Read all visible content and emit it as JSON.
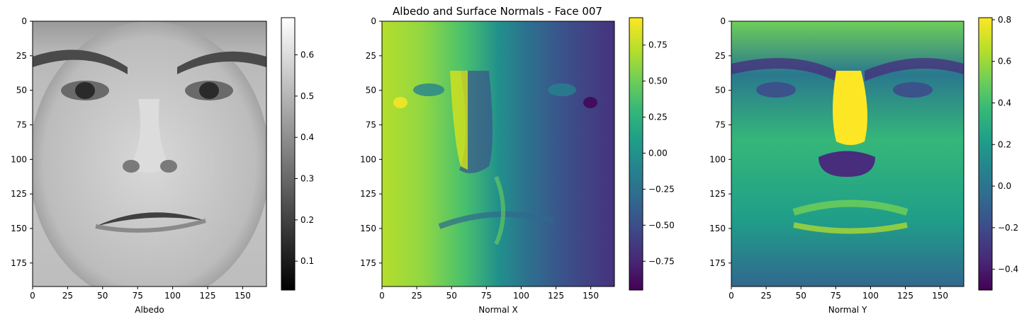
{
  "title": "Albedo and Surface Normals - Face 007",
  "colors": {
    "skin_light": "#c9c9c9",
    "viridis": [
      "#440154",
      "#482878",
      "#3e4989",
      "#31688e",
      "#26828e",
      "#1f9e89",
      "#35b779",
      "#6ece58",
      "#b5de2b",
      "#fde725"
    ]
  },
  "chart_data": [
    {
      "type": "heatmap",
      "name": "albedo",
      "xlabel": "Albedo",
      "xlim": [
        0,
        167
      ],
      "ylim": [
        192,
        0
      ],
      "x_ticks": [
        0,
        25,
        50,
        75,
        100,
        125,
        150
      ],
      "y_ticks": [
        0,
        25,
        50,
        75,
        100,
        125,
        150,
        175
      ],
      "colormap": "gray",
      "colorbar": {
        "min": 0.03,
        "max": 0.69,
        "ticks": [
          "0.1",
          "0.2",
          "0.3",
          "0.4",
          "0.5",
          "0.6"
        ],
        "tick_values": [
          0.1,
          0.2,
          0.3,
          0.4,
          0.5,
          0.6
        ]
      }
    },
    {
      "type": "heatmap",
      "name": "normal_x",
      "xlabel": "Normal X",
      "xlim": [
        0,
        167
      ],
      "ylim": [
        192,
        0
      ],
      "x_ticks": [
        0,
        25,
        50,
        75,
        100,
        125,
        150
      ],
      "y_ticks": [
        0,
        25,
        50,
        75,
        100,
        125,
        150,
        175
      ],
      "colormap": "viridis",
      "colorbar": {
        "min": -0.95,
        "max": 0.94,
        "ticks": [
          "0.75",
          "0.50",
          "0.25",
          "0.00",
          "−0.25",
          "−0.50",
          "−0.75"
        ],
        "tick_values": [
          0.75,
          0.5,
          0.25,
          0.0,
          -0.25,
          -0.5,
          -0.75
        ]
      }
    },
    {
      "type": "heatmap",
      "name": "normal_y",
      "xlabel": "Normal Y",
      "xlim": [
        0,
        167
      ],
      "ylim": [
        192,
        0
      ],
      "x_ticks": [
        0,
        25,
        50,
        75,
        100,
        125,
        150
      ],
      "y_ticks": [
        0,
        25,
        50,
        75,
        100,
        125,
        150,
        175
      ],
      "colormap": "viridis",
      "colorbar": {
        "min": -0.5,
        "max": 0.81,
        "ticks": [
          "0.8",
          "0.6",
          "0.4",
          "0.2",
          "0.0",
          "−0.2",
          "−0.4"
        ],
        "tick_values": [
          0.8,
          0.6,
          0.4,
          0.2,
          0.0,
          -0.2,
          -0.4
        ]
      }
    }
  ]
}
